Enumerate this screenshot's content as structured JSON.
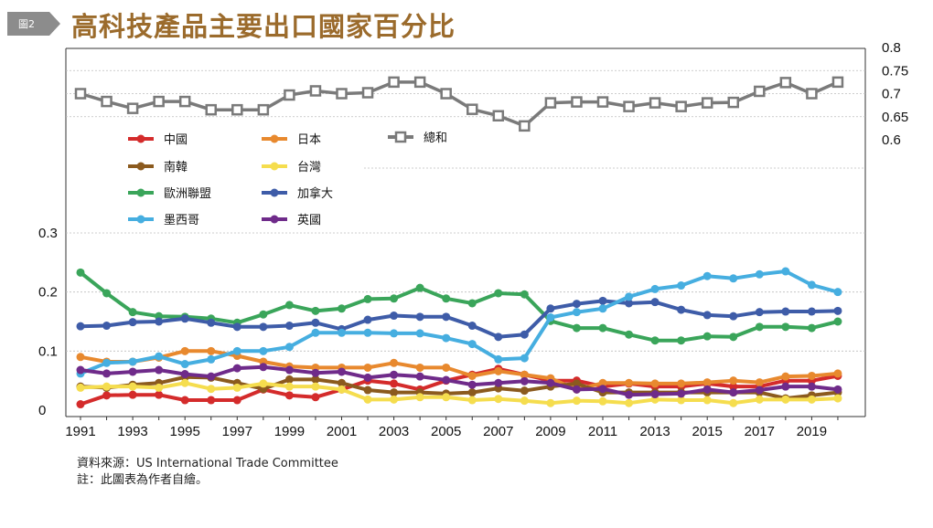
{
  "header": {
    "figure_tag": "圖2",
    "title": "高科技產品主要出口國家百分比"
  },
  "footer": {
    "source": "資料來源：US International Trade Committee",
    "note": "註：此圖表為作者自繪。"
  },
  "colors": {
    "tag_bg": "#8c8c8c",
    "title": "#9b6b2c",
    "grid": "#bdbdbd"
  },
  "chart_data": {
    "type": "line",
    "x": [
      1991,
      1992,
      1993,
      1994,
      1995,
      1996,
      1997,
      1998,
      1999,
      2000,
      2001,
      2002,
      2003,
      2004,
      2005,
      2006,
      2007,
      2008,
      2009,
      2010,
      2011,
      2012,
      2013,
      2014,
      2015,
      2016,
      2017,
      2018,
      2019,
      2020
    ],
    "x_ticks": [
      "1991",
      "1993",
      "1995",
      "1997",
      "1999",
      "2001",
      "2003",
      "2005",
      "2007",
      "2009",
      "2011",
      "2013",
      "2015",
      "2017",
      "2019"
    ],
    "left_axis": {
      "ticks": [
        "0",
        "0.1",
        "0.2",
        "0.3"
      ],
      "ylim": [
        0,
        0.3
      ]
    },
    "right_axis": {
      "ticks": [
        "0.6",
        "0.65",
        "0.7",
        "0.75",
        "0.8"
      ],
      "ylim": [
        0.6,
        0.8
      ]
    },
    "grid": true,
    "legend_placement": "upper-left, inside plot",
    "series": [
      {
        "name": "中國",
        "color": "#d42b2b",
        "axis": "left",
        "values": [
          0.01,
          0.025,
          0.026,
          0.026,
          0.017,
          0.017,
          0.017,
          0.035,
          0.025,
          0.022,
          0.035,
          0.05,
          0.045,
          0.035,
          0.05,
          0.06,
          0.07,
          0.06,
          0.05,
          0.05,
          0.04,
          0.045,
          0.04,
          0.04,
          0.045,
          0.04,
          0.04,
          0.05,
          0.05,
          0.058
        ]
      },
      {
        "name": "日本",
        "color": "#e8892e",
        "axis": "left",
        "values": [
          0.09,
          0.082,
          0.082,
          0.089,
          0.1,
          0.1,
          0.092,
          0.082,
          0.074,
          0.072,
          0.072,
          0.072,
          0.08,
          0.072,
          0.072,
          0.058,
          0.066,
          0.06,
          0.054,
          0.035,
          0.046,
          0.046,
          0.045,
          0.045,
          0.047,
          0.05,
          0.047,
          0.057,
          0.058,
          0.062
        ]
      },
      {
        "name": "總和",
        "color": "#7a7a7a",
        "axis": "right",
        "values": [
          0.7,
          0.683,
          0.668,
          0.683,
          0.683,
          0.665,
          0.665,
          0.665,
          0.697,
          0.706,
          0.7,
          0.702,
          0.725,
          0.725,
          0.7,
          0.666,
          0.652,
          0.63,
          0.68,
          0.682,
          0.682,
          0.672,
          0.68,
          0.672,
          0.68,
          0.681,
          0.705,
          0.724,
          0.7,
          0.725
        ]
      },
      {
        "name": "南韓",
        "color": "#8b5a1e",
        "axis": "left",
        "values": [
          0.04,
          0.038,
          0.043,
          0.046,
          0.056,
          0.055,
          0.046,
          0.036,
          0.052,
          0.052,
          0.046,
          0.034,
          0.03,
          0.03,
          0.028,
          0.03,
          0.037,
          0.033,
          0.04,
          0.045,
          0.03,
          0.03,
          0.03,
          0.03,
          0.03,
          0.03,
          0.03,
          0.02,
          0.025,
          0.03
        ]
      },
      {
        "name": "台灣",
        "color": "#f5dd4e",
        "axis": "left",
        "values": [
          0.038,
          0.04,
          0.04,
          0.038,
          0.046,
          0.036,
          0.038,
          0.045,
          0.04,
          0.04,
          0.035,
          0.018,
          0.018,
          0.022,
          0.022,
          0.017,
          0.019,
          0.016,
          0.012,
          0.016,
          0.015,
          0.012,
          0.018,
          0.017,
          0.017,
          0.012,
          0.018,
          0.018,
          0.018,
          0.02
        ]
      },
      {
        "name": "歐洲聯盟",
        "color": "#3aa55a",
        "axis": "left",
        "values": [
          0.233,
          0.198,
          0.166,
          0.159,
          0.158,
          0.155,
          0.148,
          0.162,
          0.178,
          0.168,
          0.172,
          0.188,
          0.189,
          0.207,
          0.189,
          0.181,
          0.198,
          0.196,
          0.151,
          0.139,
          0.139,
          0.128,
          0.118,
          0.118,
          0.125,
          0.124,
          0.141,
          0.141,
          0.139,
          0.15
        ]
      },
      {
        "name": "加拿大",
        "color": "#3e5ca8",
        "axis": "left",
        "values": [
          0.142,
          0.143,
          0.149,
          0.15,
          0.155,
          0.148,
          0.141,
          0.141,
          0.143,
          0.148,
          0.137,
          0.153,
          0.16,
          0.158,
          0.158,
          0.143,
          0.124,
          0.128,
          0.172,
          0.18,
          0.185,
          0.181,
          0.183,
          0.17,
          0.161,
          0.159,
          0.166,
          0.167,
          0.167,
          0.168
        ]
      },
      {
        "name": "墨西哥",
        "color": "#46aee0",
        "axis": "left",
        "values": [
          0.062,
          0.08,
          0.082,
          0.091,
          0.078,
          0.086,
          0.1,
          0.1,
          0.107,
          0.131,
          0.131,
          0.131,
          0.13,
          0.13,
          0.122,
          0.112,
          0.086,
          0.088,
          0.157,
          0.166,
          0.172,
          0.192,
          0.205,
          0.211,
          0.227,
          0.223,
          0.23,
          0.235,
          0.212,
          0.2
        ]
      },
      {
        "name": "英國",
        "color": "#6f2b8a",
        "axis": "left",
        "values": [
          0.068,
          0.062,
          0.065,
          0.068,
          0.061,
          0.057,
          0.071,
          0.073,
          0.068,
          0.063,
          0.065,
          0.055,
          0.06,
          0.057,
          0.051,
          0.043,
          0.046,
          0.049,
          0.046,
          0.035,
          0.036,
          0.026,
          0.027,
          0.028,
          0.035,
          0.03,
          0.034,
          0.04,
          0.04,
          0.035
        ]
      }
    ]
  }
}
